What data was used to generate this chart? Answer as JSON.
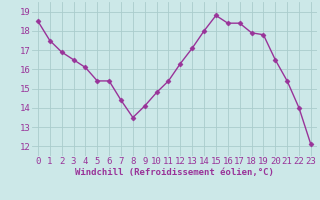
{
  "x": [
    0,
    1,
    2,
    3,
    4,
    5,
    6,
    7,
    8,
    9,
    10,
    11,
    12,
    13,
    14,
    15,
    16,
    17,
    18,
    19,
    20,
    21,
    22,
    23
  ],
  "y": [
    18.5,
    17.5,
    16.9,
    16.5,
    16.1,
    15.4,
    15.4,
    14.4,
    13.5,
    14.1,
    14.8,
    15.4,
    16.3,
    17.1,
    18.0,
    18.8,
    18.4,
    18.4,
    17.9,
    17.8,
    16.5,
    15.4,
    14.0,
    12.1
  ],
  "line_color": "#993399",
  "marker": "D",
  "marker_size": 2.5,
  "background_color": "#cce8e8",
  "grid_color": "#aacccc",
  "xlabel": "Windchill (Refroidissement éolien,°C)",
  "xlim": [
    -0.5,
    23.5
  ],
  "ylim": [
    11.5,
    19.5
  ],
  "yticks": [
    12,
    13,
    14,
    15,
    16,
    17,
    18,
    19
  ],
  "xticks": [
    0,
    1,
    2,
    3,
    4,
    5,
    6,
    7,
    8,
    9,
    10,
    11,
    12,
    13,
    14,
    15,
    16,
    17,
    18,
    19,
    20,
    21,
    22,
    23
  ],
  "xlabel_fontsize": 6.5,
  "tick_fontsize": 6.5,
  "line_width": 1.0
}
